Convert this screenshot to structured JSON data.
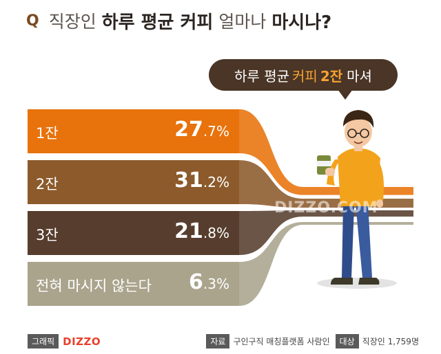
{
  "header": {
    "q": "Q",
    "title_parts": [
      "직장인",
      "하루 평균 커피",
      "얼마나",
      "마시나?"
    ]
  },
  "bubble": {
    "text_before": "하루 평균",
    "highlight_word": "커피",
    "highlight_number": "2잔",
    "text_after": "마셔"
  },
  "chart_data": {
    "type": "bar",
    "categories": [
      "1잔",
      "2잔",
      "3잔",
      "전혀 마시지 않는다"
    ],
    "values": [
      27.7,
      31.2,
      21.8,
      6.3
    ],
    "value_labels": [
      {
        "big": "27",
        "small": ".7%"
      },
      {
        "big": "31",
        "small": ".2%"
      },
      {
        "big": "21",
        "small": ".8%"
      },
      {
        "big": "6",
        "small": ".3%"
      }
    ],
    "colors": [
      "#e8720b",
      "#8c5a2b",
      "#563d2d",
      "#aaa48d"
    ],
    "unit": "%"
  },
  "watermark": "DIZZO.COM",
  "footer": {
    "graphic_tag": "그래픽",
    "brand": "DIZZO",
    "source_tag": "자료",
    "source_text": "구인구직 매칭플랫폼 사람인",
    "target_tag": "대상",
    "target_text": "직장인 1,759명"
  }
}
